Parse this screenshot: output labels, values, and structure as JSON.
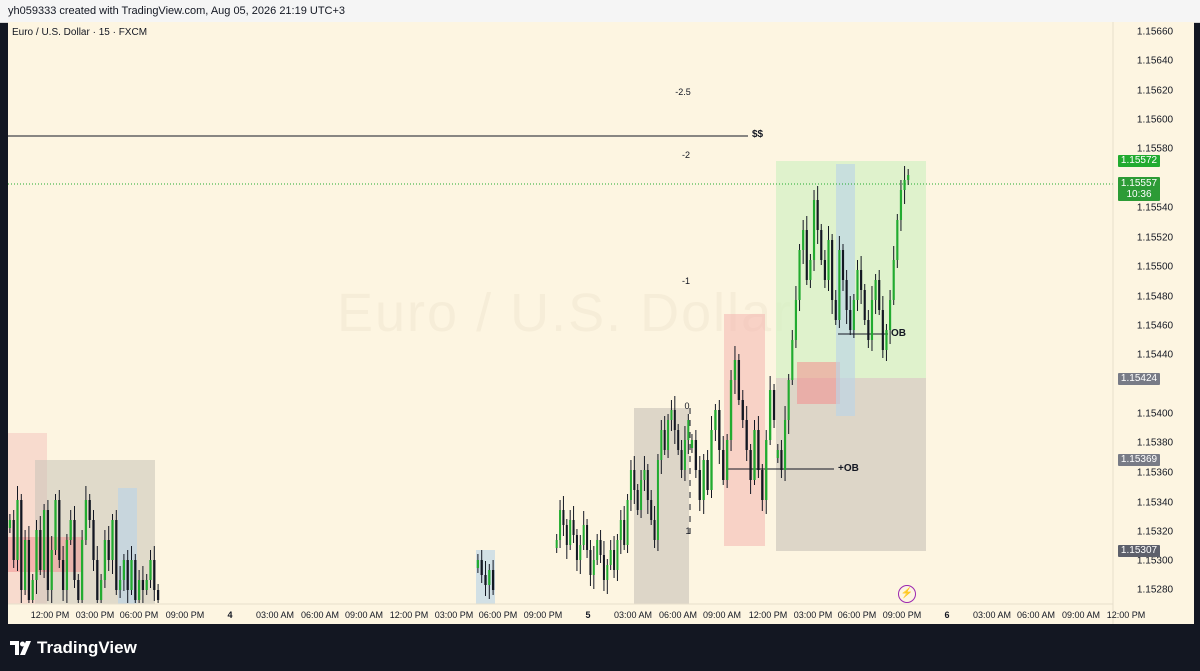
{
  "header": {
    "attribution": "yh059333 created with TradingView.com, Aug 05, 2026 21:19 UTC+3"
  },
  "symbol": {
    "label": "Euro / U.S. Dollar · 15 · FXCM",
    "watermark": "Euro / U.S. Dollar"
  },
  "price_axis": {
    "labels": [
      "1.15660",
      "1.15640",
      "1.15620",
      "1.15600",
      "1.15580",
      "1.15540",
      "1.15520",
      "1.15500",
      "1.15480",
      "1.15460",
      "1.15440",
      "1.15400",
      "1.15380",
      "1.15360",
      "1.15340",
      "1.15320",
      "1.15300",
      "1.15280"
    ],
    "badges": {
      "green_1": "1.15572",
      "green_2_price": "1.15557",
      "green_2_countdown": "10:36",
      "gray_1": "1.15424",
      "gray_2": "1.15369",
      "gray_3": "1.15307"
    }
  },
  "time_axis": [
    "12:00 PM",
    "03:00 PM",
    "06:00 PM",
    "09:00 PM",
    "4",
    "03:00 AM",
    "06:00 AM",
    "09:00 AM",
    "12:00 PM",
    "03:00 PM",
    "06:00 PM",
    "09:00 PM",
    "5",
    "03:00 AM",
    "06:00 AM",
    "09:00 AM",
    "12:00 PM",
    "03:00 PM",
    "06:00 PM",
    "09:00 PM",
    "6",
    "03:00 AM",
    "06:00 AM",
    "09:00 AM",
    "12:00 PM"
  ],
  "fib_levels": [
    "-2.5",
    "-2",
    "-1",
    "0",
    "1"
  ],
  "annotations": {
    "liquidity": "$$",
    "ob_upper": "OB",
    "ob_lower": "+OB"
  },
  "footer": {
    "brand": "TradingView"
  },
  "colors": {
    "background": "#fdf5e1",
    "bull_candle": "#22ab30",
    "bear_candle": "#131722",
    "zone_red": "#f4a6a6",
    "zone_gray": "#c8c2b8",
    "zone_green": "#d4f0c4",
    "zone_blue": "#bcd4e6"
  },
  "chart_data": {
    "type": "candlestick",
    "symbol": "Euro / U.S. Dollar",
    "timeframe": "15",
    "source": "FXCM",
    "ylim": [
      1.1527,
      1.1567
    ],
    "last_price": 1.15557,
    "marked_prices": [
      1.15572,
      1.15557,
      1.15424,
      1.15369,
      1.15307
    ],
    "fib_levels": [
      -2.5,
      -2,
      -1,
      0,
      1
    ],
    "annotations": [
      "$$",
      "OB",
      "+OB"
    ]
  }
}
